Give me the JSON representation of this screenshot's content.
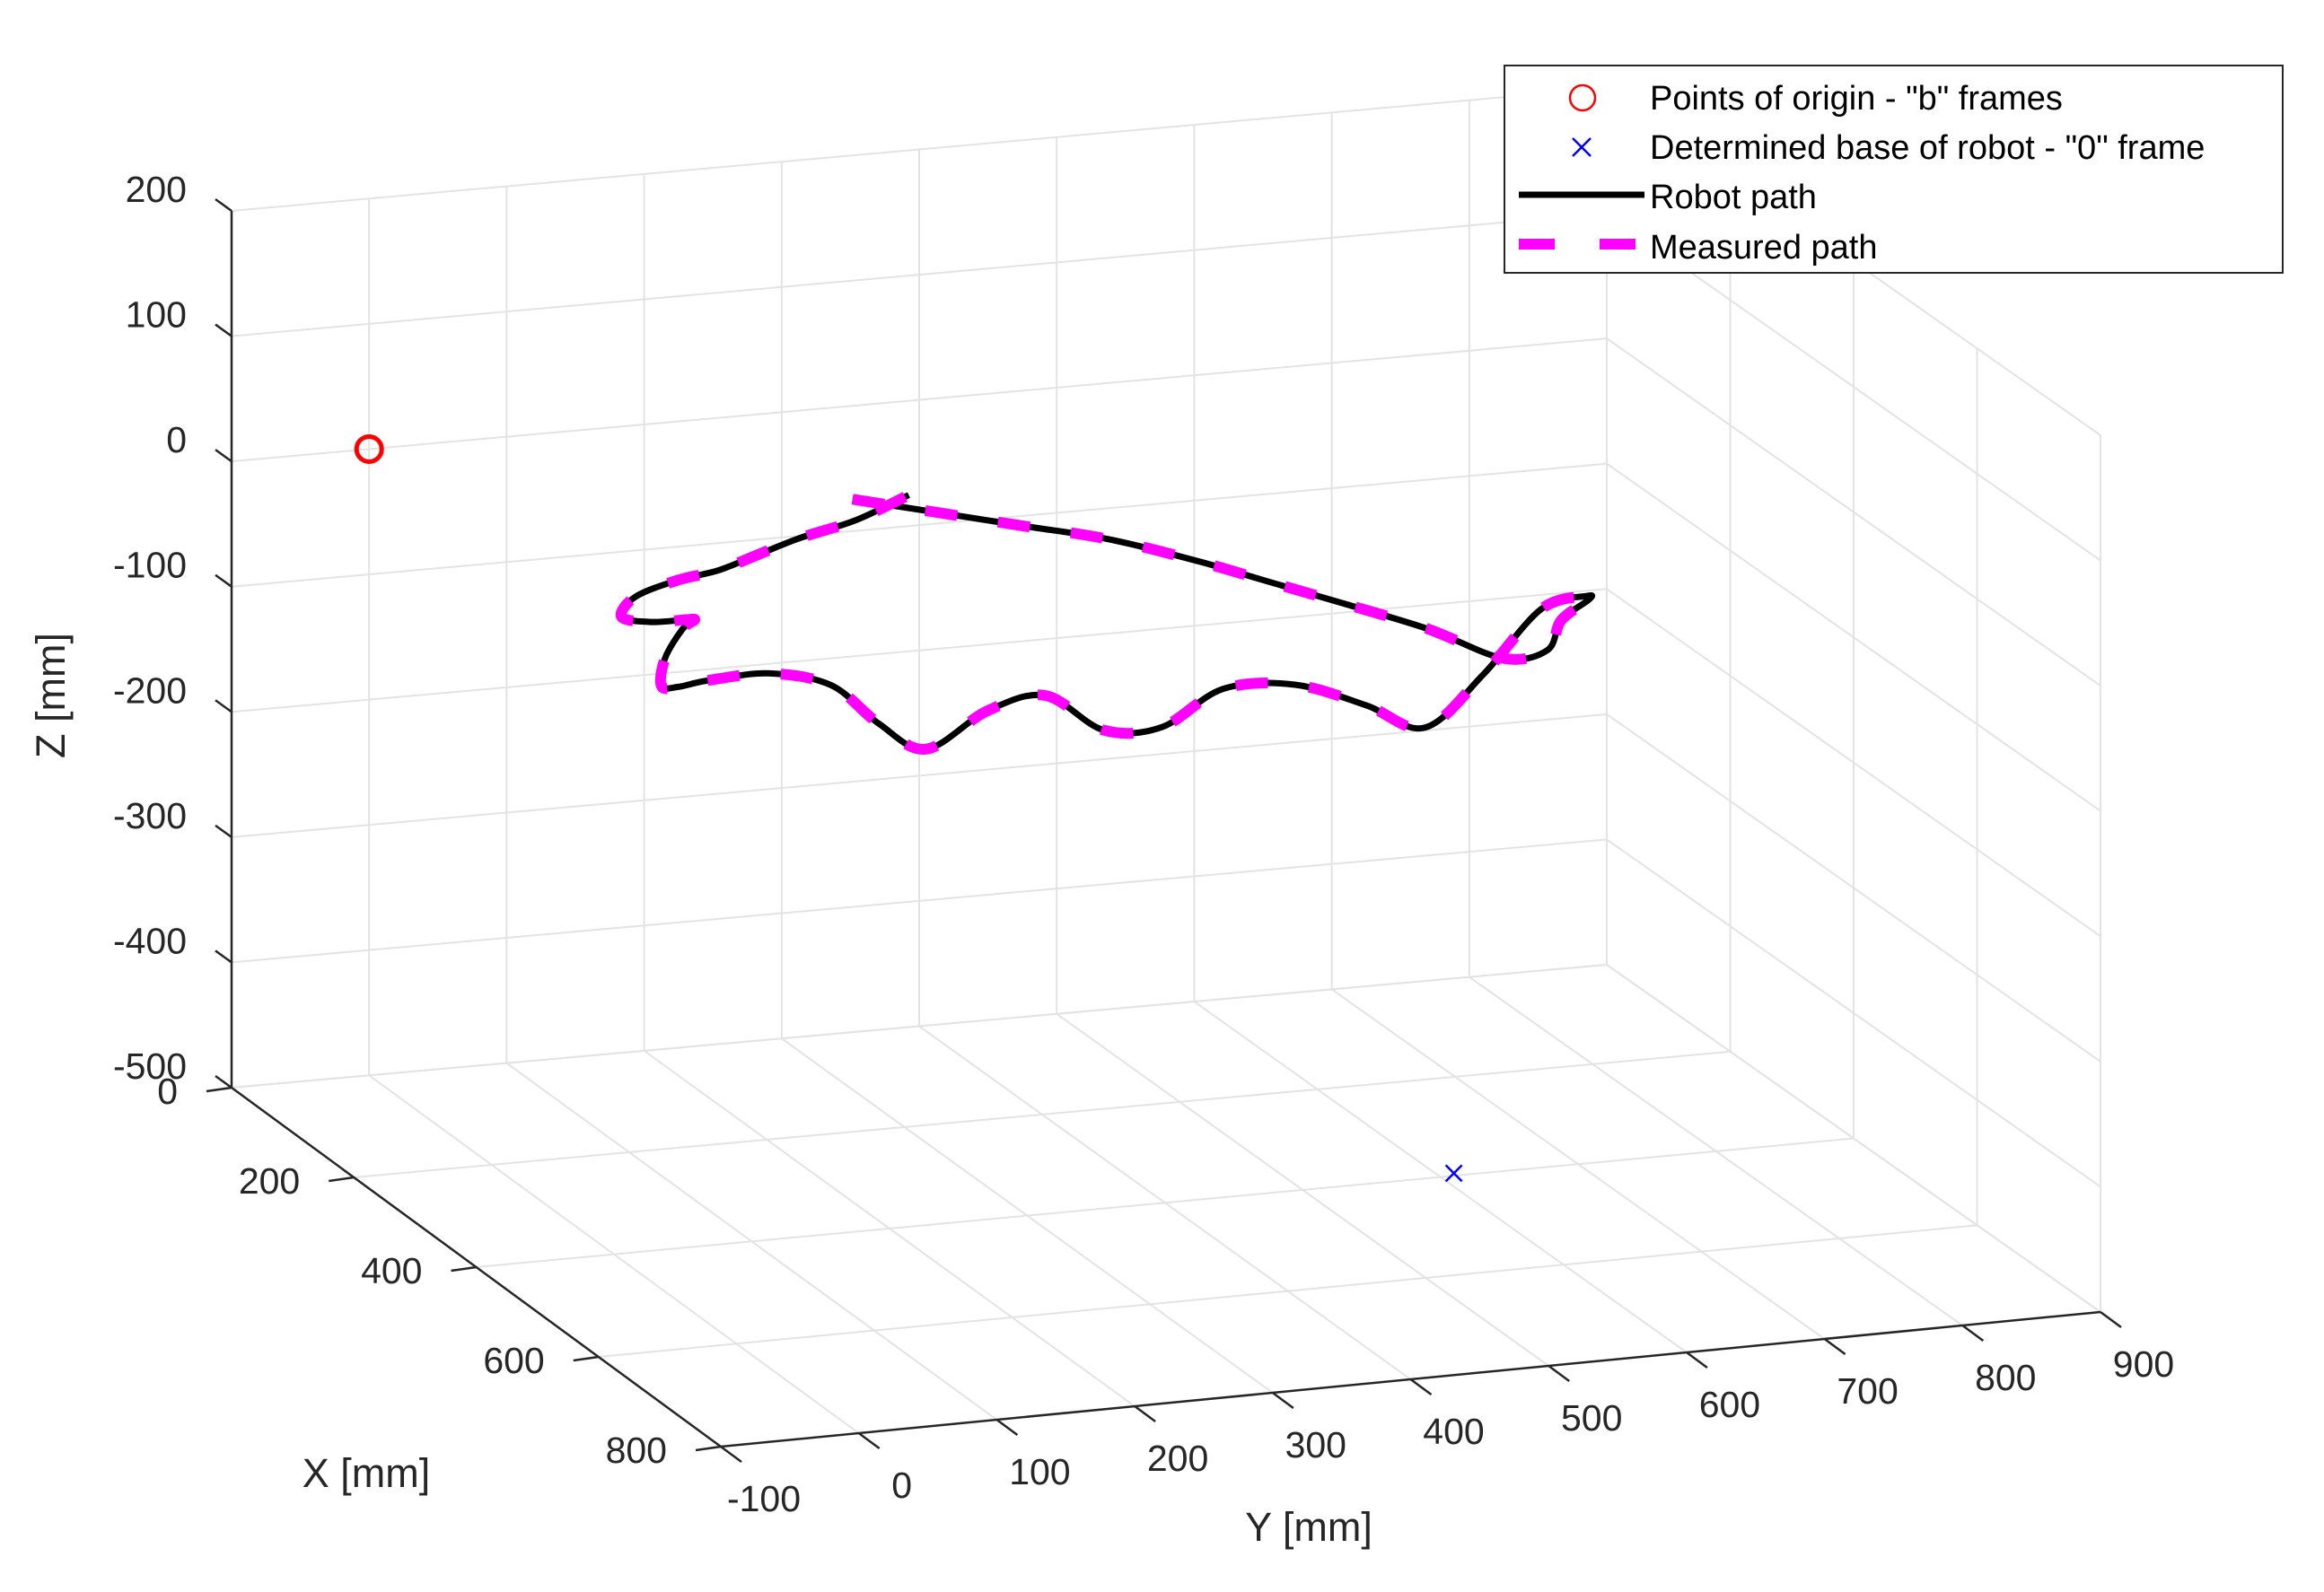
{
  "chart_data": {
    "type": "line3d",
    "view": "3D perspective, box axes with grid",
    "grid": true,
    "legend_position": "top-right",
    "xlabel": "X [mm]",
    "ylabel": "Y [mm]",
    "zlabel": "Z [mm]",
    "xlim": [
      0,
      800
    ],
    "ylim": [
      -100,
      900
    ],
    "zlim": [
      -500,
      200
    ],
    "xticks": [
      {
        "value": 0,
        "label": "0"
      },
      {
        "value": 200,
        "label": "200"
      },
      {
        "value": 400,
        "label": "400"
      },
      {
        "value": 600,
        "label": "600"
      },
      {
        "value": 800,
        "label": "800"
      }
    ],
    "yticks": [
      {
        "value": -100,
        "label": "-100"
      },
      {
        "value": 0,
        "label": "0"
      },
      {
        "value": 100,
        "label": "100"
      },
      {
        "value": 200,
        "label": "200"
      },
      {
        "value": 300,
        "label": "300"
      },
      {
        "value": 400,
        "label": "400"
      },
      {
        "value": 500,
        "label": "500"
      },
      {
        "value": 600,
        "label": "600"
      },
      {
        "value": 700,
        "label": "700"
      },
      {
        "value": 800,
        "label": "800"
      },
      {
        "value": 900,
        "label": "900"
      }
    ],
    "zticks": [
      {
        "value": 200,
        "label": "200"
      },
      {
        "value": 100,
        "label": "100"
      },
      {
        "value": 0,
        "label": "0"
      },
      {
        "value": -100,
        "label": "-100"
      },
      {
        "value": -200,
        "label": "-200"
      },
      {
        "value": -300,
        "label": "-300"
      },
      {
        "value": -400,
        "label": "-400"
      },
      {
        "value": -500,
        "label": "-500"
      }
    ],
    "series": [
      {
        "name": "Points of origin - \"b\" frames",
        "kind": "marker",
        "marker": "circle",
        "color": "#ff0000",
        "points": [
          {
            "x": 0,
            "y": 0,
            "z": 0
          }
        ]
      },
      {
        "name": "Determined base of robot - \"0\" frame",
        "kind": "marker",
        "marker": "x",
        "color": "#0000ff",
        "points": [
          {
            "x": 395,
            "y": 612,
            "z": -500
          }
        ]
      },
      {
        "name": "Robot path",
        "kind": "line",
        "line": "solid",
        "color": "#000000",
        "points": [
          {
            "x": 250,
            "y": 240,
            "z": 25
          },
          {
            "x": 255,
            "y": 300,
            "z": 10
          },
          {
            "x": 260,
            "y": 360,
            "z": -5
          },
          {
            "x": 265,
            "y": 420,
            "z": -20
          },
          {
            "x": 275,
            "y": 480,
            "z": -40
          },
          {
            "x": 280,
            "y": 530,
            "z": -60
          },
          {
            "x": 285,
            "y": 580,
            "z": -80
          },
          {
            "x": 290,
            "y": 640,
            "z": -105
          },
          {
            "x": 300,
            "y": 690,
            "z": -130
          },
          {
            "x": 305,
            "y": 720,
            "z": -125
          },
          {
            "x": 310,
            "y": 728,
            "z": -100
          },
          {
            "x": 350,
            "y": 730,
            "z": -70
          },
          {
            "x": 380,
            "y": 715,
            "z": -55
          },
          {
            "x": 385,
            "y": 680,
            "z": -60
          },
          {
            "x": 380,
            "y": 640,
            "z": -110
          },
          {
            "x": 375,
            "y": 600,
            "z": -150
          },
          {
            "x": 370,
            "y": 560,
            "z": -130
          },
          {
            "x": 365,
            "y": 510,
            "z": -110
          },
          {
            "x": 360,
            "y": 460,
            "z": -110
          },
          {
            "x": 350,
            "y": 420,
            "z": -140
          },
          {
            "x": 345,
            "y": 380,
            "z": -140
          },
          {
            "x": 340,
            "y": 340,
            "z": -110
          },
          {
            "x": 335,
            "y": 300,
            "z": -120
          },
          {
            "x": 325,
            "y": 260,
            "z": -150
          },
          {
            "x": 315,
            "y": 230,
            "z": -130
          },
          {
            "x": 305,
            "y": 200,
            "z": -100
          },
          {
            "x": 295,
            "y": 160,
            "z": -90
          },
          {
            "x": 285,
            "y": 120,
            "z": -95
          },
          {
            "x": 280,
            "y": 100,
            "z": -100
          },
          {
            "x": 275,
            "y": 90,
            "z": -100
          },
          {
            "x": 270,
            "y": 95,
            "z": -80
          },
          {
            "x": 265,
            "y": 110,
            "z": -60
          },
          {
            "x": 262,
            "y": 120,
            "z": -55
          },
          {
            "x": 260,
            "y": 115,
            "z": -55
          },
          {
            "x": 258,
            "y": 90,
            "z": -55
          },
          {
            "x": 255,
            "y": 70,
            "z": -50
          },
          {
            "x": 255,
            "y": 80,
            "z": -35
          },
          {
            "x": 255,
            "y": 110,
            "z": -25
          },
          {
            "x": 255,
            "y": 140,
            "z": -20
          },
          {
            "x": 255,
            "y": 170,
            "z": -10
          },
          {
            "x": 255,
            "y": 200,
            "z": 0
          },
          {
            "x": 255,
            "y": 240,
            "z": 10
          },
          {
            "x": 252,
            "y": 280,
            "z": 25
          }
        ]
      },
      {
        "name": "Measured path",
        "kind": "line",
        "line": "dashed",
        "color": "#ff00ff",
        "points": [
          {
            "x": 250,
            "y": 240,
            "z": 25
          },
          {
            "x": 255,
            "y": 300,
            "z": 10
          },
          {
            "x": 260,
            "y": 360,
            "z": -5
          },
          {
            "x": 265,
            "y": 420,
            "z": -20
          },
          {
            "x": 275,
            "y": 480,
            "z": -40
          },
          {
            "x": 280,
            "y": 530,
            "z": -60
          },
          {
            "x": 285,
            "y": 580,
            "z": -80
          },
          {
            "x": 290,
            "y": 640,
            "z": -105
          },
          {
            "x": 300,
            "y": 690,
            "z": -130
          },
          {
            "x": 305,
            "y": 720,
            "z": -125
          },
          {
            "x": 310,
            "y": 728,
            "z": -100
          },
          {
            "x": 350,
            "y": 730,
            "z": -70
          },
          {
            "x": 380,
            "y": 715,
            "z": -55
          },
          {
            "x": 385,
            "y": 680,
            "z": -60
          },
          {
            "x": 380,
            "y": 640,
            "z": -110
          },
          {
            "x": 375,
            "y": 600,
            "z": -150
          },
          {
            "x": 370,
            "y": 560,
            "z": -130
          },
          {
            "x": 365,
            "y": 510,
            "z": -110
          },
          {
            "x": 360,
            "y": 460,
            "z": -110
          },
          {
            "x": 350,
            "y": 420,
            "z": -140
          },
          {
            "x": 345,
            "y": 380,
            "z": -140
          },
          {
            "x": 340,
            "y": 340,
            "z": -110
          },
          {
            "x": 335,
            "y": 300,
            "z": -120
          },
          {
            "x": 325,
            "y": 260,
            "z": -150
          },
          {
            "x": 315,
            "y": 230,
            "z": -130
          },
          {
            "x": 305,
            "y": 200,
            "z": -100
          },
          {
            "x": 295,
            "y": 160,
            "z": -90
          },
          {
            "x": 285,
            "y": 120,
            "z": -95
          },
          {
            "x": 280,
            "y": 100,
            "z": -100
          },
          {
            "x": 275,
            "y": 90,
            "z": -100
          },
          {
            "x": 270,
            "y": 95,
            "z": -80
          },
          {
            "x": 265,
            "y": 110,
            "z": -60
          },
          {
            "x": 262,
            "y": 120,
            "z": -55
          },
          {
            "x": 260,
            "y": 115,
            "z": -55
          },
          {
            "x": 258,
            "y": 90,
            "z": -55
          },
          {
            "x": 255,
            "y": 70,
            "z": -50
          },
          {
            "x": 255,
            "y": 80,
            "z": -35
          },
          {
            "x": 255,
            "y": 110,
            "z": -25
          },
          {
            "x": 255,
            "y": 140,
            "z": -20
          },
          {
            "x": 255,
            "y": 170,
            "z": -10
          },
          {
            "x": 255,
            "y": 200,
            "z": 0
          },
          {
            "x": 255,
            "y": 240,
            "z": 10
          },
          {
            "x": 252,
            "y": 280,
            "z": 25
          }
        ]
      }
    ]
  }
}
